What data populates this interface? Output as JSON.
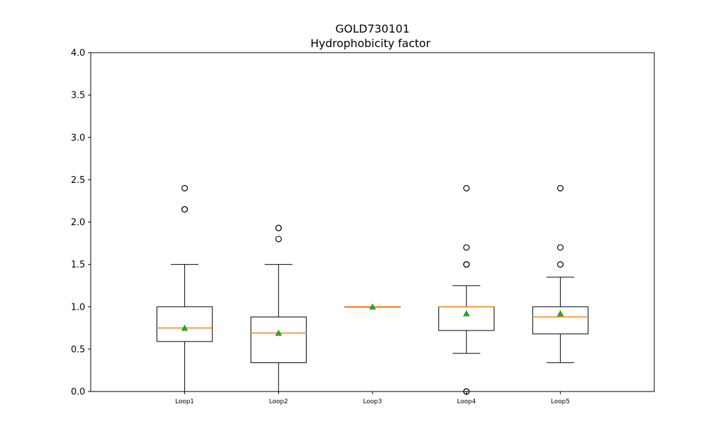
{
  "chart_data": {
    "type": "box",
    "title": "GOLD730101",
    "subtitle": "Hydrophobicity factor",
    "xlabel": "",
    "ylabel": "",
    "ylim": [
      0,
      4
    ],
    "yticks": [
      "0.0",
      "0.5",
      "1.0",
      "1.5",
      "2.0",
      "2.5",
      "3.0",
      "3.5",
      "4.0"
    ],
    "categories": [
      "Loop1",
      "Loop2",
      "Loop3",
      "Loop4",
      "Loop5"
    ],
    "grid": false,
    "colors": {
      "box": "#000000",
      "median": "#ff7f0e",
      "mean": "#2ca02c"
    },
    "boxes": [
      {
        "name": "Loop1",
        "whisker_low": 0.0,
        "q1": 0.59,
        "median": 0.75,
        "q3": 1.0,
        "whisker_high": 1.5,
        "mean": 0.75,
        "outliers": [
          2.15,
          2.15,
          2.4
        ]
      },
      {
        "name": "Loop2",
        "whisker_low": 0.0,
        "q1": 0.34,
        "median": 0.69,
        "q3": 0.88,
        "whisker_high": 1.5,
        "mean": 0.69,
        "outliers": [
          1.8,
          1.93,
          1.93
        ]
      },
      {
        "name": "Loop3",
        "whisker_low": 1.0,
        "q1": 1.0,
        "median": 1.0,
        "q3": 1.0,
        "whisker_high": 1.0,
        "mean": 1.0,
        "outliers": []
      },
      {
        "name": "Loop4",
        "whisker_low": 0.45,
        "q1": 0.72,
        "median": 1.0,
        "q3": 1.0,
        "whisker_high": 1.25,
        "mean": 0.92,
        "outliers": [
          0.0,
          0.0,
          1.5,
          1.5,
          1.7,
          2.4
        ]
      },
      {
        "name": "Loop5",
        "whisker_low": 0.34,
        "q1": 0.68,
        "median": 0.88,
        "q3": 1.0,
        "whisker_high": 1.35,
        "mean": 0.92,
        "outliers": [
          1.5,
          1.7,
          2.4
        ]
      }
    ]
  }
}
